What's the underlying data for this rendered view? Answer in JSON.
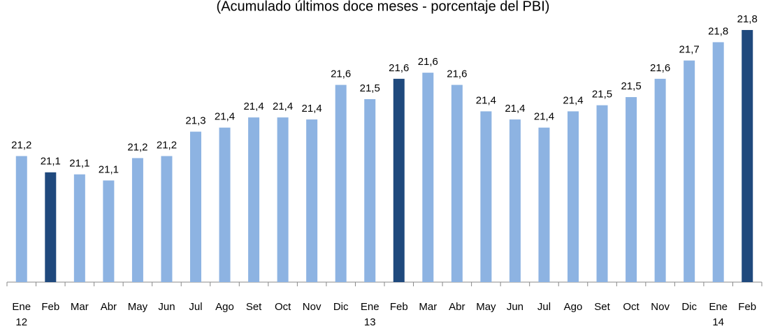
{
  "chart_data": {
    "type": "bar",
    "title": "(Acumulado últimos doce meses - porcentaje del PBI)",
    "categories": [
      "Ene 12",
      "Feb",
      "Mar",
      "Abr",
      "May",
      "Jun",
      "Jul",
      "Ago",
      "Set",
      "Oct",
      "Nov",
      "Dic",
      "Ene 13",
      "Feb",
      "Mar",
      "Abr",
      "May",
      "Jun",
      "Jul",
      "Ago",
      "Set",
      "Oct",
      "Nov",
      "Dic",
      "Ene 14",
      "Feb"
    ],
    "values": [
      21.22,
      21.14,
      21.13,
      21.1,
      21.21,
      21.22,
      21.34,
      21.36,
      21.41,
      21.41,
      21.4,
      21.57,
      21.5,
      21.6,
      21.63,
      21.57,
      21.44,
      21.4,
      21.36,
      21.44,
      21.47,
      21.51,
      21.6,
      21.69,
      21.78,
      21.84
    ],
    "value_labels": [
      "21,2",
      "21,1",
      "21,1",
      "21,1",
      "21,2",
      "21,2",
      "21,3",
      "21,4",
      "21,4",
      "21,4",
      "21,4",
      "21,6",
      "21,5",
      "21,6",
      "21,6",
      "21,6",
      "21,4",
      "21,4",
      "21,4",
      "21,4",
      "21,5",
      "21,5",
      "21,6",
      "21,7",
      "21,8",
      "21,8"
    ],
    "colors": [
      "#8db3e2",
      "#1f497d",
      "#8db3e2",
      "#8db3e2",
      "#8db3e2",
      "#8db3e2",
      "#8db3e2",
      "#8db3e2",
      "#8db3e2",
      "#8db3e2",
      "#8db3e2",
      "#8db3e2",
      "#8db3e2",
      "#1f497d",
      "#8db3e2",
      "#8db3e2",
      "#8db3e2",
      "#8db3e2",
      "#8db3e2",
      "#8db3e2",
      "#8db3e2",
      "#8db3e2",
      "#8db3e2",
      "#8db3e2",
      "#8db3e2",
      "#1f497d"
    ],
    "ylim": [
      20.6,
      21.9
    ]
  }
}
